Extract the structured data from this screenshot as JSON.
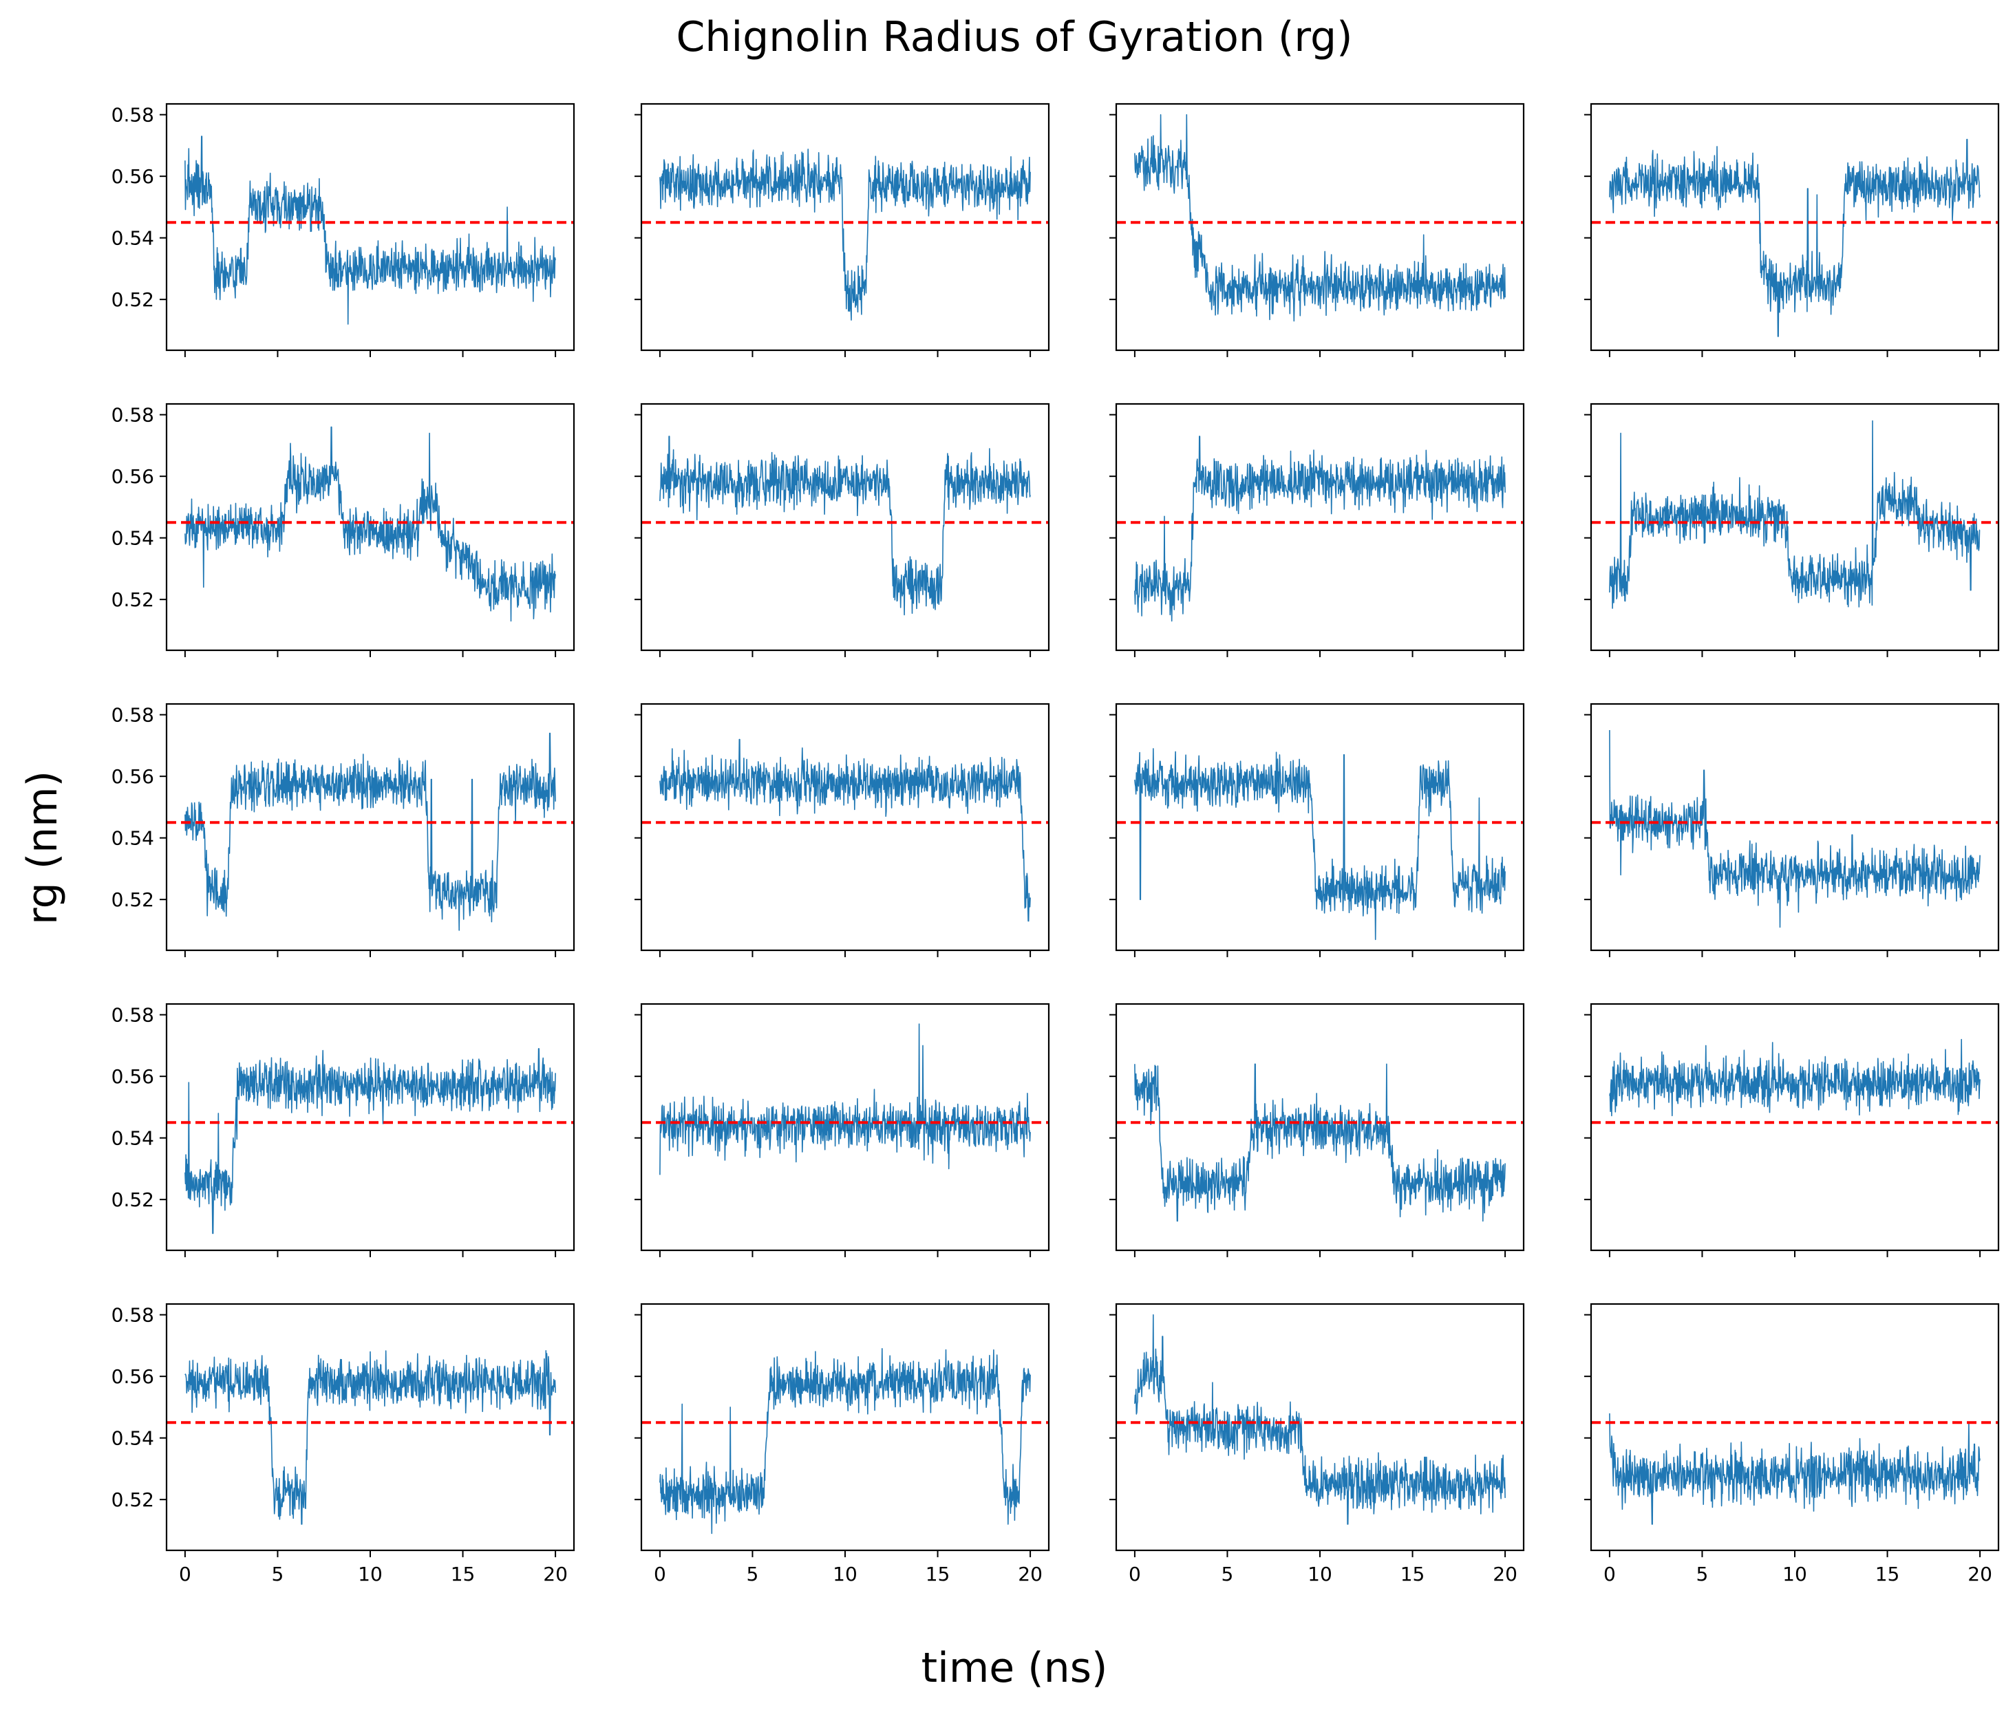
{
  "figure": {
    "title": "Chignolin Radius of Gyration (rg)",
    "xlabel": "time (ns)",
    "ylabel": "rg (nm)"
  },
  "colors": {
    "series": "#1f77b4",
    "threshold": "#ff0000",
    "axes": "#000000",
    "background": "#ffffff"
  },
  "chart_data": {
    "type": "line",
    "layout": "5x4 grid of subplots, shared x and y axes",
    "xlim": [
      -1,
      21
    ],
    "ylim": [
      0.5035,
      0.5835
    ],
    "xticks": [
      0,
      5,
      10,
      15,
      20
    ],
    "yticks": [
      0.52,
      0.54,
      0.56,
      0.58
    ],
    "xtick_labels": [
      "0",
      "5",
      "10",
      "15",
      "20"
    ],
    "ytick_labels": [
      "0.52",
      "0.54",
      "0.56",
      "0.58"
    ],
    "threshold": 0.545,
    "grid": false,
    "x_range": [
      0,
      20
    ],
    "panels": [
      {
        "segments": [
          [
            0,
            0.557
          ],
          [
            1.4,
            0.557
          ],
          [
            1.6,
            0.528
          ],
          [
            3.3,
            0.528
          ],
          [
            3.5,
            0.55
          ],
          [
            7.3,
            0.55
          ],
          [
            7.8,
            0.53
          ],
          [
            20,
            0.53
          ]
        ],
        "spikes": [
          [
            0.9,
            0.573
          ],
          [
            0.2,
            0.569
          ],
          [
            4.6,
            0.561
          ],
          [
            8.8,
            0.512
          ],
          [
            17.4,
            0.55
          ]
        ]
      },
      {
        "segments": [
          [
            0,
            0.558
          ],
          [
            9.8,
            0.558
          ],
          [
            10,
            0.522
          ],
          [
            11.1,
            0.522
          ],
          [
            11.3,
            0.557
          ],
          [
            20,
            0.557
          ]
        ],
        "spikes": [
          [
            10.3,
            0.517
          ],
          [
            1.8,
            0.567
          ],
          [
            7.4,
            0.565
          ]
        ]
      },
      {
        "segments": [
          [
            0,
            0.563
          ],
          [
            2.8,
            0.563
          ],
          [
            3.2,
            0.535
          ],
          [
            3.7,
            0.535
          ],
          [
            3.9,
            0.524
          ],
          [
            20,
            0.524
          ]
        ],
        "spikes": [
          [
            1.4,
            0.58
          ],
          [
            2.8,
            0.58
          ],
          [
            8.6,
            0.513
          ],
          [
            15.6,
            0.541
          ]
        ]
      },
      {
        "segments": [
          [
            0,
            0.558
          ],
          [
            8,
            0.558
          ],
          [
            8.2,
            0.53
          ],
          [
            8.8,
            0.525
          ],
          [
            12.5,
            0.525
          ],
          [
            12.7,
            0.557
          ],
          [
            20,
            0.557
          ]
        ],
        "spikes": [
          [
            9.1,
            0.508
          ],
          [
            10.7,
            0.556
          ],
          [
            19.3,
            0.572
          ],
          [
            11.2,
            0.554
          ]
        ]
      },
      {
        "segments": [
          [
            0,
            0.543
          ],
          [
            5.2,
            0.543
          ],
          [
            5.5,
            0.558
          ],
          [
            8.3,
            0.558
          ],
          [
            8.6,
            0.541
          ],
          [
            12.5,
            0.541
          ],
          [
            12.8,
            0.551
          ],
          [
            13.6,
            0.551
          ],
          [
            13.9,
            0.54
          ],
          [
            15.3,
            0.533
          ],
          [
            16.4,
            0.523
          ],
          [
            20,
            0.526
          ]
        ],
        "spikes": [
          [
            7.9,
            0.576
          ],
          [
            13.2,
            0.574
          ],
          [
            17.6,
            0.513
          ],
          [
            1,
            0.524
          ]
        ]
      },
      {
        "segments": [
          [
            0,
            0.558
          ],
          [
            12.4,
            0.558
          ],
          [
            12.6,
            0.525
          ],
          [
            15.2,
            0.525
          ],
          [
            15.4,
            0.558
          ],
          [
            20,
            0.558
          ]
        ],
        "spikes": [
          [
            0.5,
            0.573
          ],
          [
            13.2,
            0.515
          ],
          [
            17.8,
            0.569
          ]
        ]
      },
      {
        "segments": [
          [
            0,
            0.524
          ],
          [
            3,
            0.524
          ],
          [
            3.2,
            0.558
          ],
          [
            20,
            0.558
          ]
        ],
        "spikes": [
          [
            2,
            0.513
          ],
          [
            1.6,
            0.547
          ],
          [
            3.5,
            0.573
          ]
        ]
      },
      {
        "segments": [
          [
            0,
            0.526
          ],
          [
            1,
            0.526
          ],
          [
            1.2,
            0.547
          ],
          [
            9.5,
            0.547
          ],
          [
            9.7,
            0.527
          ],
          [
            14.2,
            0.527
          ],
          [
            14.5,
            0.552
          ],
          [
            16.5,
            0.552
          ],
          [
            16.8,
            0.545
          ],
          [
            20,
            0.54
          ]
        ],
        "spikes": [
          [
            0.6,
            0.574
          ],
          [
            14.2,
            0.578
          ],
          [
            19.5,
            0.523
          ]
        ]
      },
      {
        "segments": [
          [
            0,
            0.545
          ],
          [
            1,
            0.545
          ],
          [
            1.2,
            0.522
          ],
          [
            2.3,
            0.522
          ],
          [
            2.5,
            0.557
          ],
          [
            13,
            0.557
          ],
          [
            13.2,
            0.522
          ],
          [
            16.8,
            0.522
          ],
          [
            17,
            0.556
          ],
          [
            20,
            0.556
          ]
        ],
        "spikes": [
          [
            19.7,
            0.574
          ],
          [
            14.8,
            0.51
          ],
          [
            13.3,
            0.559
          ],
          [
            15.5,
            0.559
          ]
        ]
      },
      {
        "segments": [
          [
            0,
            0.558
          ],
          [
            19.4,
            0.558
          ],
          [
            19.6,
            0.545
          ],
          [
            19.7,
            0.522
          ],
          [
            20,
            0.522
          ]
        ],
        "spikes": [
          [
            4.3,
            0.572
          ],
          [
            19.9,
            0.513
          ]
        ]
      },
      {
        "segments": [
          [
            0,
            0.558
          ],
          [
            9.5,
            0.558
          ],
          [
            9.8,
            0.523
          ],
          [
            15.2,
            0.523
          ],
          [
            15.4,
            0.558
          ],
          [
            17,
            0.558
          ],
          [
            17.2,
            0.525
          ],
          [
            20,
            0.525
          ]
        ],
        "spikes": [
          [
            0.3,
            0.52
          ],
          [
            1,
            0.569
          ],
          [
            11.3,
            0.567
          ],
          [
            13,
            0.507
          ],
          [
            16.4,
            0.565
          ],
          [
            18.6,
            0.553
          ],
          [
            2.2,
            0.568
          ]
        ]
      },
      {
        "segments": [
          [
            0,
            0.545
          ],
          [
            5.2,
            0.545
          ],
          [
            5.4,
            0.528
          ],
          [
            20,
            0.528
          ]
        ],
        "spikes": [
          [
            0,
            0.575
          ],
          [
            0.6,
            0.528
          ],
          [
            5.1,
            0.562
          ],
          [
            9.2,
            0.511
          ],
          [
            13.1,
            0.541
          ]
        ]
      },
      {
        "segments": [
          [
            0,
            0.525
          ],
          [
            2.5,
            0.525
          ],
          [
            2.9,
            0.557
          ],
          [
            20,
            0.557
          ]
        ],
        "spikes": [
          [
            1.5,
            0.509
          ],
          [
            0.2,
            0.558
          ],
          [
            1.8,
            0.548
          ],
          [
            19.1,
            0.569
          ]
        ]
      },
      {
        "segments": [
          [
            0,
            0.544
          ],
          [
            20,
            0.544
          ]
        ],
        "spikes": [
          [
            14,
            0.577
          ],
          [
            14.2,
            0.57
          ],
          [
            0,
            0.528
          ],
          [
            15.6,
            0.53
          ]
        ]
      },
      {
        "segments": [
          [
            0,
            0.555
          ],
          [
            1.3,
            0.555
          ],
          [
            1.5,
            0.525
          ],
          [
            6,
            0.525
          ],
          [
            6.3,
            0.543
          ],
          [
            13.7,
            0.543
          ],
          [
            14,
            0.525
          ],
          [
            20,
            0.525
          ]
        ],
        "spikes": [
          [
            0,
            0.564
          ],
          [
            2.3,
            0.513
          ],
          [
            6.5,
            0.564
          ],
          [
            13.6,
            0.564
          ],
          [
            18.8,
            0.513
          ]
        ]
      },
      {
        "segments": [
          [
            0,
            0.558
          ],
          [
            20,
            0.558
          ]
        ],
        "spikes": [
          [
            19,
            0.572
          ],
          [
            5.2,
            0.57
          ],
          [
            8.8,
            0.571
          ]
        ]
      },
      {
        "segments": [
          [
            0,
            0.558
          ],
          [
            4.5,
            0.558
          ],
          [
            4.8,
            0.522
          ],
          [
            6.5,
            0.522
          ],
          [
            6.7,
            0.558
          ],
          [
            20,
            0.558
          ]
        ],
        "spikes": [
          [
            6.3,
            0.512
          ],
          [
            19.7,
            0.541
          ],
          [
            10,
            0.568
          ]
        ]
      },
      {
        "segments": [
          [
            0,
            0.522
          ],
          [
            5.6,
            0.522
          ],
          [
            5.9,
            0.558
          ],
          [
            18.3,
            0.558
          ],
          [
            18.6,
            0.522
          ],
          [
            19.4,
            0.522
          ],
          [
            19.6,
            0.558
          ],
          [
            20,
            0.558
          ]
        ],
        "spikes": [
          [
            2.8,
            0.509
          ],
          [
            3.8,
            0.55
          ],
          [
            18.8,
            0.512
          ],
          [
            1.2,
            0.551
          ]
        ]
      },
      {
        "segments": [
          [
            0,
            0.548
          ],
          [
            0.4,
            0.56
          ],
          [
            1.5,
            0.56
          ],
          [
            1.8,
            0.543
          ],
          [
            8.9,
            0.543
          ],
          [
            9.2,
            0.525
          ],
          [
            20,
            0.525
          ]
        ],
        "spikes": [
          [
            1,
            0.58
          ],
          [
            1.5,
            0.573
          ],
          [
            4.2,
            0.558
          ],
          [
            11.5,
            0.512
          ]
        ]
      },
      {
        "segments": [
          [
            0,
            0.538
          ],
          [
            0.4,
            0.528
          ],
          [
            20,
            0.528
          ]
        ],
        "spikes": [
          [
            0,
            0.548
          ],
          [
            2.3,
            0.512
          ],
          [
            19.4,
            0.545
          ],
          [
            19.7,
            0.538
          ]
        ]
      }
    ]
  }
}
